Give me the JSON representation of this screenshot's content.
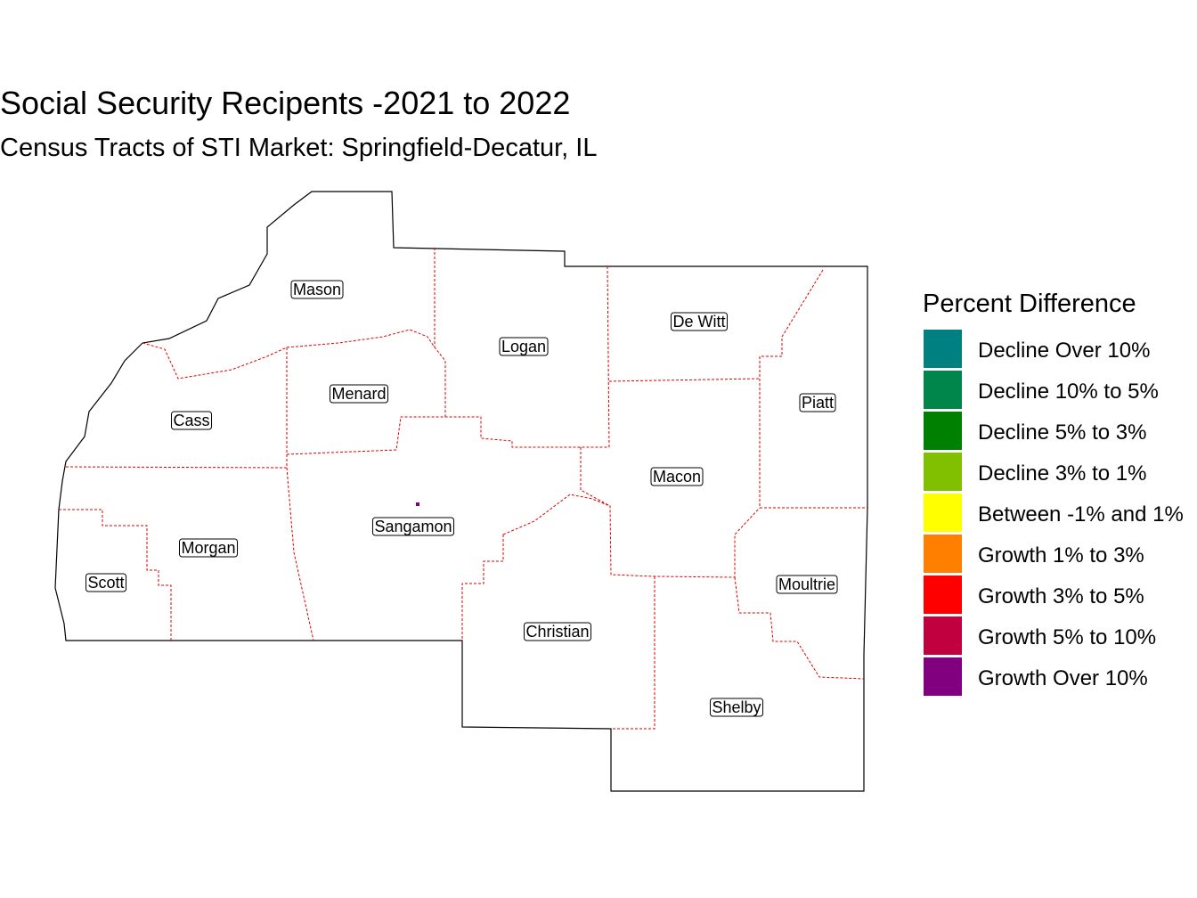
{
  "title": "Social Security Recipents -2021 to 2022",
  "subtitle": "Census Tracts of STI Market: Springfield-Decatur, IL",
  "legend": {
    "title": "Percent Difference",
    "items": [
      {
        "label": "Decline Over 10%",
        "color": "#008080"
      },
      {
        "label": "Decline 10% to 5%",
        "color": "#00854a"
      },
      {
        "label": "Decline 5% to 3%",
        "color": "#008000"
      },
      {
        "label": "Decline 3% to 1%",
        "color": "#80c000"
      },
      {
        "label": "Between -1% and 1%",
        "color": "#ffff00"
      },
      {
        "label": "Growth 1% to 3%",
        "color": "#ff8000"
      },
      {
        "label": "Growth 3% to 5%",
        "color": "#ff0000"
      },
      {
        "label": "Growth 5% to 10%",
        "color": "#c0003f"
      },
      {
        "label": "Growth Over 10%",
        "color": "#800080"
      }
    ]
  },
  "counties": [
    "Mason",
    "Logan",
    "De Witt",
    "Piatt",
    "Menard",
    "Cass",
    "Macon",
    "Sangamon",
    "Morgan",
    "Scott",
    "Moultrie",
    "Christian",
    "Shelby"
  ]
}
